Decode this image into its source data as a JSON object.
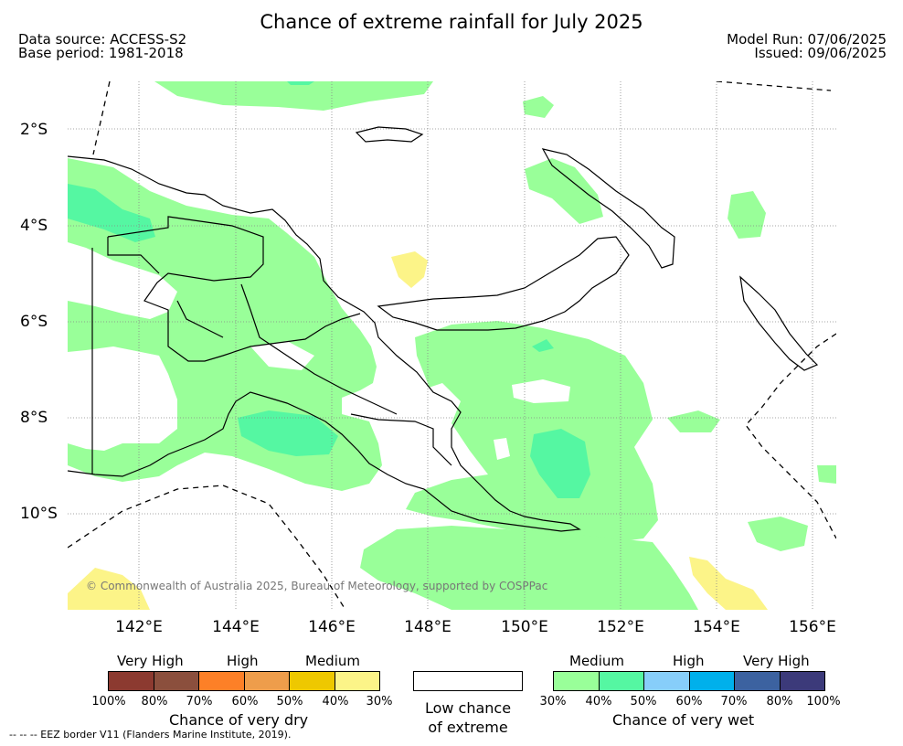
{
  "title": "Chance of extreme rainfall for July 2025",
  "data_source": "Data source: ACCESS-S2",
  "base_period": "Base period: 1981-2018",
  "model_run": "Model Run: 07/06/2025",
  "issued": "Issued: 09/06/2025",
  "copyright": "© Commonwealth of Australia 2025, Bureau of Meteorology, supported by COSPPac",
  "eez_note": "--  --  -- EEZ border V11 (Flanders Marine Institute, 2019).",
  "lat_labels": [
    "2°S",
    "4°S",
    "6°S",
    "8°S",
    "10°S"
  ],
  "lon_labels": [
    "142°E",
    "144°E",
    "146°E",
    "148°E",
    "150°E",
    "152°E",
    "154°E",
    "156°E"
  ],
  "colors": {
    "wet_30_40": "#99ff99",
    "wet_40_50": "#55f7a2",
    "dry_30": "#fcf488",
    "coast": "#000000",
    "grid": "#888888"
  },
  "legend": {
    "dry": {
      "headers": [
        "Very High",
        "High",
        "Medium"
      ],
      "colors": [
        "#8c3a30",
        "#8b4f3d",
        "#fd8027",
        "#ee9d4b",
        "#eec800",
        "#fcf488"
      ],
      "ticks": [
        "100%",
        "80%",
        "70%",
        "60%",
        "50%",
        "40%",
        "30%"
      ],
      "caption": "Chance of very dry"
    },
    "neutral": {
      "caption_line1": "Low chance",
      "caption_line2": "of extreme"
    },
    "wet": {
      "headers": [
        "Medium",
        "High",
        "Very High"
      ],
      "colors": [
        "#99ff99",
        "#55f7a2",
        "#87cefa",
        "#00b0eb",
        "#3c62a0",
        "#3c3a7a"
      ],
      "ticks": [
        "30%",
        "40%",
        "50%",
        "60%",
        "70%",
        "80%",
        "100%"
      ],
      "caption": "Chance of very wet"
    }
  }
}
